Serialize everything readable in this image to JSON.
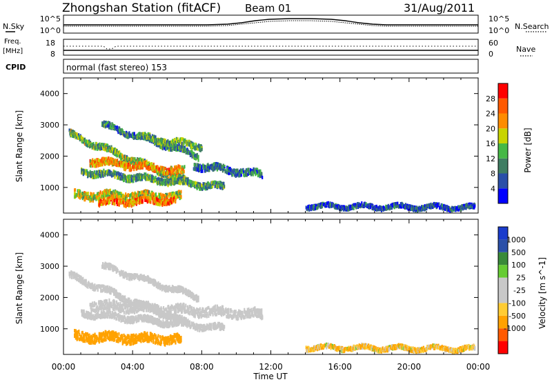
{
  "header": {
    "station": "Zhongshan Station (fitACF)",
    "beam": "Beam 01",
    "date": "31/Aug/2011"
  },
  "noise_panel": {
    "left_label": "N.Sky",
    "right_label": "N.Search",
    "left_ticks": [
      "10^5",
      "10^0"
    ],
    "right_ticks": [
      "10^5",
      "10^0"
    ]
  },
  "freq_panel": {
    "left_label_line1": "Freq.",
    "left_label_line2": "[MHz]",
    "right_label": "Nave",
    "left_ticks": [
      "18",
      "8"
    ],
    "right_ticks": [
      "60",
      "0"
    ]
  },
  "cpid_panel": {
    "label": "CPID",
    "mode_text": "normal (fast stereo) 153"
  },
  "colors": {
    "power_scale": [
      "#0000ff",
      "#2a4fa8",
      "#3f7d62",
      "#46b846",
      "#c8d400",
      "#ff8c00",
      "#ff5a00",
      "#ff0000"
    ],
    "velocity_scale": [
      "#ff0000",
      "#ff5a00",
      "#ffa200",
      "#ffcc33",
      "#c8c8c8",
      "#c8c8c8",
      "#66cc33",
      "#3a8a3a",
      "#2a4fa8",
      "#1a3ccc"
    ],
    "ground_scatter": "#c8c8c8"
  },
  "chart_data": [
    {
      "type": "heatmap",
      "name": "power",
      "xlabel": "",
      "ylabel": "Slant Range [km]",
      "xlim_hours": [
        0,
        24
      ],
      "ylim": [
        180,
        4500
      ],
      "y_ticks": [
        "1000",
        "2000",
        "3000",
        "4000"
      ],
      "colorbar": {
        "label": "Power [dB]",
        "range": [
          0,
          32
        ],
        "ticks": [
          "4",
          "8",
          "12",
          "16",
          "20",
          "24",
          "28"
        ]
      },
      "echo_regions": [
        {
          "t_start": 0.3,
          "t_end": 7.2,
          "r_start": 2700,
          "r_end": 1150,
          "half_width_km": 90,
          "power_db": 14
        },
        {
          "t_start": 1.5,
          "t_end": 7.0,
          "r_start": 1850,
          "r_end": 1500,
          "half_width_km": 110,
          "power_db": 22
        },
        {
          "t_start": 1.0,
          "t_end": 9.3,
          "r_start": 1500,
          "r_end": 1000,
          "half_width_km": 90,
          "power_db": 12
        },
        {
          "t_start": 0.6,
          "t_end": 6.8,
          "r_start": 750,
          "r_end": 700,
          "half_width_km": 120,
          "power_db": 18
        },
        {
          "t_start": 2.0,
          "t_end": 6.5,
          "r_start": 500,
          "r_end": 600,
          "half_width_km": 90,
          "power_db": 24
        },
        {
          "t_start": 2.2,
          "t_end": 7.8,
          "r_start": 3000,
          "r_end": 2000,
          "half_width_km": 80,
          "power_db": 10
        },
        {
          "t_start": 4.5,
          "t_end": 8.0,
          "r_start": 2600,
          "r_end": 2300,
          "half_width_km": 90,
          "power_db": 13
        },
        {
          "t_start": 7.5,
          "t_end": 11.5,
          "r_start": 1700,
          "r_end": 1400,
          "half_width_km": 100,
          "power_db": 8
        },
        {
          "t_start": 14.0,
          "t_end": 23.8,
          "r_start": 400,
          "r_end": 350,
          "half_width_km": 60,
          "power_db": 6
        }
      ]
    },
    {
      "type": "heatmap",
      "name": "velocity",
      "xlabel": "Time UT",
      "ylabel": "Slant Range [km]",
      "xlim_hours": [
        0,
        24
      ],
      "ylim": [
        180,
        4500
      ],
      "x_ticks": [
        "00:00",
        "04:00",
        "08:00",
        "12:00",
        "16:00",
        "20:00",
        "00:00"
      ],
      "y_ticks": [
        "1000",
        "2000",
        "3000",
        "4000"
      ],
      "colorbar": {
        "label": "Velocity [m s^-1]",
        "ticks": [
          "1000",
          "500",
          "100",
          "25",
          "-25",
          "-100",
          "-500",
          "-1000"
        ]
      },
      "echo_regions": [
        {
          "t_start": 0.3,
          "t_end": 7.2,
          "r_start": 2700,
          "r_end": 1150,
          "half_width_km": 90,
          "velocity": 0
        },
        {
          "t_start": 1.5,
          "t_end": 11.5,
          "r_start": 1750,
          "r_end": 1450,
          "half_width_km": 140,
          "velocity": 0
        },
        {
          "t_start": 1.0,
          "t_end": 9.3,
          "r_start": 1500,
          "r_end": 1000,
          "half_width_km": 90,
          "velocity": 0
        },
        {
          "t_start": 0.6,
          "t_end": 6.8,
          "r_start": 750,
          "r_end": 650,
          "half_width_km": 140,
          "velocity": -250
        },
        {
          "t_start": 2.2,
          "t_end": 7.8,
          "r_start": 3000,
          "r_end": 2000,
          "half_width_km": 80,
          "velocity": 0
        },
        {
          "t_start": 14.0,
          "t_end": 23.8,
          "r_start": 400,
          "r_end": 350,
          "half_width_km": 60,
          "velocity": -80
        }
      ]
    }
  ]
}
